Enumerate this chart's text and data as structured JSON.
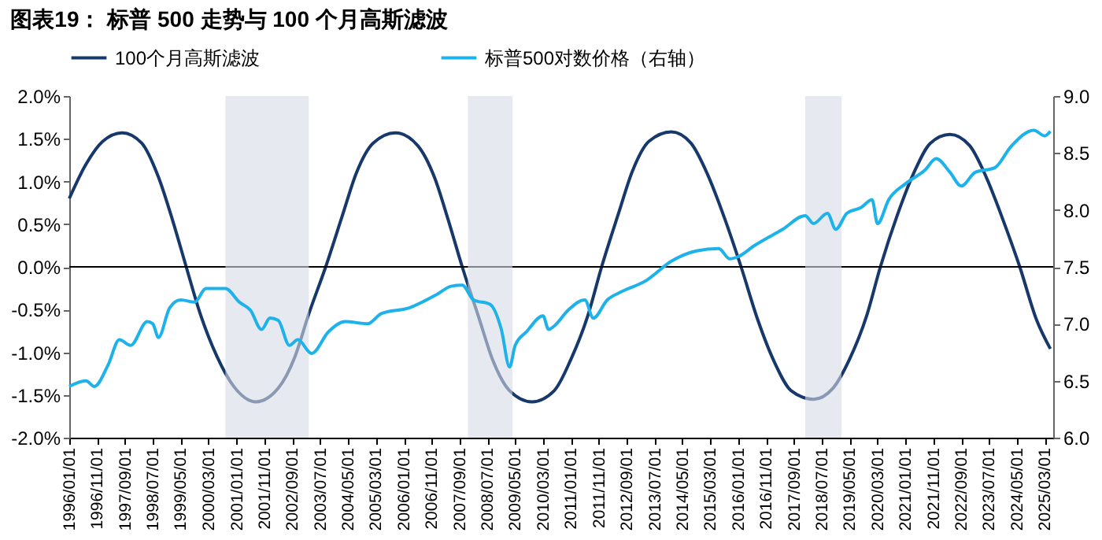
{
  "chart_data": {
    "type": "line",
    "title": "图表19：  标普 500 走势与 100 个月高斯滤波",
    "legend": "top",
    "xlim": [
      "1996-01-01",
      "2025-06-01"
    ],
    "xticks": [
      {
        "value": "1996-01-01",
        "label": "1996/01/01"
      },
      {
        "value": "1996-11-01",
        "label": "1996/11/01"
      },
      {
        "value": "1997-09-01",
        "label": "1997/09/01"
      },
      {
        "value": "1998-07-01",
        "label": "1998/07/01"
      },
      {
        "value": "1999-05-01",
        "label": "1999/05/01"
      },
      {
        "value": "2000-03-01",
        "label": "2000/03/01"
      },
      {
        "value": "2001-01-01",
        "label": "2001/01/01"
      },
      {
        "value": "2001-11-01",
        "label": "2001/11/01"
      },
      {
        "value": "2002-09-01",
        "label": "2002/09/01"
      },
      {
        "value": "2003-07-01",
        "label": "2003/07/01"
      },
      {
        "value": "2004-05-01",
        "label": "2004/05/01"
      },
      {
        "value": "2005-03-01",
        "label": "2005/03/01"
      },
      {
        "value": "2006-01-01",
        "label": "2006/01/01"
      },
      {
        "value": "2006-11-01",
        "label": "2006/11/01"
      },
      {
        "value": "2007-09-01",
        "label": "2007/09/01"
      },
      {
        "value": "2008-07-01",
        "label": "2008/07/01"
      },
      {
        "value": "2009-05-01",
        "label": "2009/05/01"
      },
      {
        "value": "2010-03-01",
        "label": "2010/03/01"
      },
      {
        "value": "2011-01-01",
        "label": "2011/01/01"
      },
      {
        "value": "2011-11-01",
        "label": "2011/11/01"
      },
      {
        "value": "2012-09-01",
        "label": "2012/09/01"
      },
      {
        "value": "2013-07-01",
        "label": "2013/07/01"
      },
      {
        "value": "2014-05-01",
        "label": "2014/05/01"
      },
      {
        "value": "2015-03-01",
        "label": "2015/03/01"
      },
      {
        "value": "2016-01-01",
        "label": "2016/01/01"
      },
      {
        "value": "2016-11-01",
        "label": "2016/11/01"
      },
      {
        "value": "2017-09-01",
        "label": "2017/09/01"
      },
      {
        "value": "2018-07-01",
        "label": "2018/07/01"
      },
      {
        "value": "2019-05-01",
        "label": "2019/05/01"
      },
      {
        "value": "2020-03-01",
        "label": "2020/03/01"
      },
      {
        "value": "2021-01-01",
        "label": "2021/01/01"
      },
      {
        "value": "2021-11-01",
        "label": "2021/11/01"
      },
      {
        "value": "2022-09-01",
        "label": "2022/09/01"
      },
      {
        "value": "2023-07-01",
        "label": "2023/07/01"
      },
      {
        "value": "2024-05-01",
        "label": "2024/05/01"
      },
      {
        "value": "2025-03-01",
        "label": "2025/03/01"
      }
    ],
    "ylim": [
      -2,
      2
    ],
    "yticks": [
      {
        "value": -2,
        "label": "-2.0%"
      },
      {
        "value": -1.5,
        "label": "-1.5%"
      },
      {
        "value": -1,
        "label": "-1.0%"
      },
      {
        "value": -0.5,
        "label": "-0.5%"
      },
      {
        "value": 0,
        "label": "0.0%"
      },
      {
        "value": 0.5,
        "label": "0.5%"
      },
      {
        "value": 1,
        "label": "1.0%"
      },
      {
        "value": 1.5,
        "label": "1.5%"
      },
      {
        "value": 2,
        "label": "2.0%"
      }
    ],
    "y2lim": [
      6,
      9
    ],
    "y2ticks": [
      {
        "value": 6,
        "label": "6.0"
      },
      {
        "value": 6.5,
        "label": "6.5"
      },
      {
        "value": 7,
        "label": "7.0"
      },
      {
        "value": 7.5,
        "label": "7.5"
      },
      {
        "value": 8,
        "label": "8.0"
      },
      {
        "value": 8.5,
        "label": "8.5"
      },
      {
        "value": 9,
        "label": "9.0"
      }
    ],
    "ref_lines": [
      {
        "axis": "y",
        "value": 0,
        "color": "#000000"
      }
    ],
    "bands": [
      {
        "axis": "x",
        "from": "2000-09",
        "to": "2003-03",
        "color": "#d6dbe5"
      },
      {
        "axis": "x",
        "from": "2007-12",
        "to": "2009-04",
        "color": "#d6dbe5"
      },
      {
        "axis": "x",
        "from": "2018-01",
        "to": "2019-02",
        "color": "#d6dbe5"
      }
    ],
    "series": [
      {
        "name": "100个月高斯滤波",
        "color": "#17386b",
        "x": [
          "1996-01",
          "1996-07",
          "1997-01",
          "1997-08",
          "1998-03",
          "1998-09",
          "1999-02",
          "1999-07",
          "1999-12",
          "2000-06",
          "2000-12",
          "2001-08",
          "2002-04",
          "2002-10",
          "2003-03",
          "2003-09",
          "2004-03",
          "2004-08",
          "2005-02",
          "2005-10",
          "2006-06",
          "2006-12",
          "2007-05",
          "2007-10",
          "2008-04",
          "2008-09",
          "2009-03",
          "2009-11",
          "2010-07",
          "2011-01",
          "2011-07",
          "2011-12",
          "2012-06",
          "2012-11",
          "2013-05",
          "2014-01",
          "2014-08",
          "2015-02",
          "2015-08",
          "2016-02",
          "2016-08",
          "2017-02",
          "2017-08",
          "2018-04",
          "2018-11",
          "2019-05",
          "2019-11",
          "2020-04",
          "2020-10",
          "2021-04",
          "2021-10",
          "2022-05",
          "2022-12",
          "2023-06",
          "2023-12",
          "2024-06",
          "2024-12",
          "2025-05"
        ],
        "values": [
          0.8,
          1.2,
          1.47,
          1.57,
          1.45,
          1.05,
          0.55,
          0,
          -0.55,
          -1.05,
          -1.4,
          -1.58,
          -1.42,
          -1.05,
          -0.55,
          0,
          0.6,
          1.1,
          1.45,
          1.57,
          1.42,
          1.05,
          0.55,
          0,
          -0.6,
          -1.1,
          -1.45,
          -1.58,
          -1.45,
          -1.08,
          -0.58,
          0,
          0.62,
          1.12,
          1.47,
          1.58,
          1.45,
          1.08,
          0.58,
          0,
          -0.62,
          -1.12,
          -1.45,
          -1.55,
          -1.42,
          -1.08,
          -0.58,
          0,
          0.6,
          1.1,
          1.45,
          1.55,
          1.42,
          1.05,
          0.55,
          0,
          -0.62,
          -0.96
        ]
      },
      {
        "name": "标普500对数价格（右轴）",
        "color": "#1db2ea",
        "axis": "y2",
        "x": [
          "1996-01",
          "1996-07",
          "1996-10",
          "1997-03",
          "1997-07",
          "1997-11",
          "1998-05",
          "1998-07",
          "1998-09",
          "1999-01",
          "1999-05",
          "1999-10",
          "2000-02",
          "2000-09",
          "2001-02",
          "2001-06",
          "2001-10",
          "2002-01",
          "2002-04",
          "2002-08",
          "2002-11",
          "2003-04",
          "2003-10",
          "2004-04",
          "2004-12",
          "2005-05",
          "2006-03",
          "2007-01",
          "2007-06",
          "2007-10",
          "2008-02",
          "2008-08",
          "2008-12",
          "2009-03",
          "2009-05",
          "2009-09",
          "2010-03",
          "2010-05",
          "2010-07",
          "2010-12",
          "2011-06",
          "2011-09",
          "2012-02",
          "2012-07",
          "2013-04",
          "2014-01",
          "2014-10",
          "2015-06",
          "2015-10",
          "2016-01",
          "2016-07",
          "2017-05",
          "2018-01",
          "2018-04",
          "2018-09",
          "2018-12",
          "2019-04",
          "2019-09",
          "2020-01",
          "2020-03",
          "2020-07",
          "2021-01",
          "2021-08",
          "2021-12",
          "2022-05",
          "2022-09",
          "2023-02",
          "2023-09",
          "2024-03",
          "2024-11",
          "2025-03",
          "2025-05"
        ],
        "values": [
          6.45,
          6.5,
          6.45,
          6.64,
          6.86,
          6.81,
          7.02,
          7.0,
          6.88,
          7.14,
          7.21,
          7.19,
          7.31,
          7.31,
          7.19,
          7.12,
          6.95,
          7.05,
          7.03,
          6.81,
          6.86,
          6.74,
          6.93,
          7.02,
          7.0,
          7.09,
          7.14,
          7.26,
          7.33,
          7.34,
          7.21,
          7.17,
          6.95,
          6.62,
          6.81,
          6.93,
          7.07,
          6.95,
          6.98,
          7.12,
          7.21,
          7.05,
          7.21,
          7.28,
          7.38,
          7.55,
          7.64,
          7.66,
          7.57,
          7.59,
          7.69,
          7.83,
          7.95,
          7.88,
          7.97,
          7.83,
          7.97,
          8.02,
          8.09,
          7.88,
          8.09,
          8.23,
          8.35,
          8.45,
          8.33,
          8.21,
          8.33,
          8.37,
          8.56,
          8.7,
          8.65,
          8.69
        ]
      }
    ]
  }
}
